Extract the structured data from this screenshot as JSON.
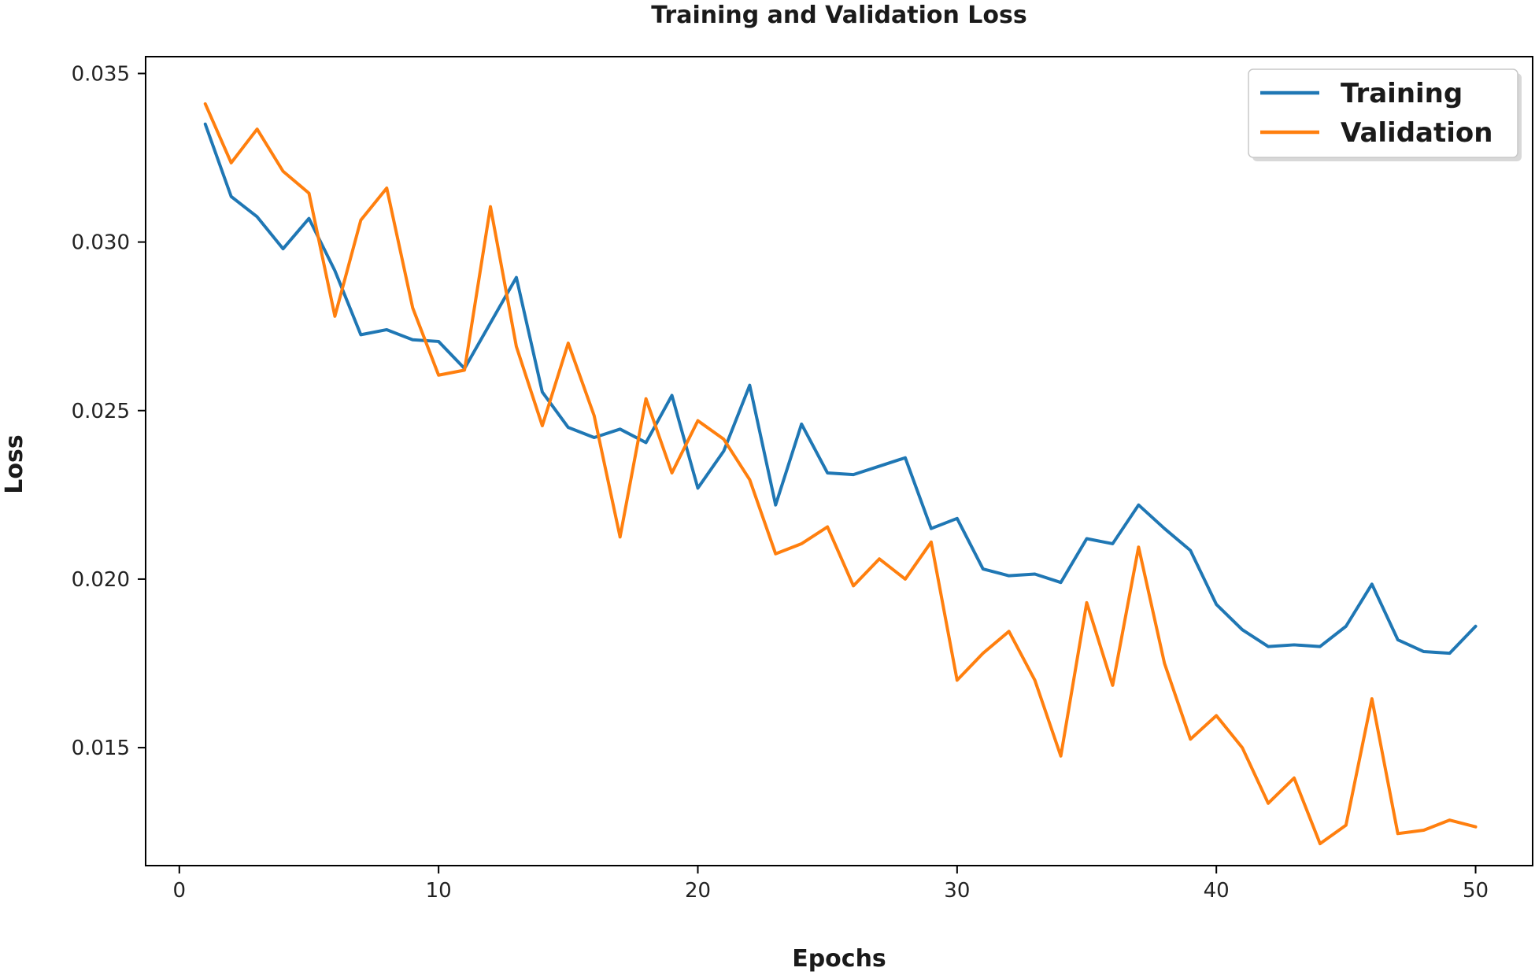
{
  "chart_data": {
    "type": "line",
    "title": "Training and Validation Loss",
    "xlabel": "Epochs",
    "ylabel": "Loss",
    "xlim": [
      -1.3,
      52.2
    ],
    "ylim": [
      0.0115,
      0.0355
    ],
    "xticks": [
      0,
      10,
      20,
      30,
      40,
      50
    ],
    "xtick_labels": [
      "0",
      "10",
      "20",
      "30",
      "40",
      "50"
    ],
    "yticks": [
      0.015,
      0.02,
      0.025,
      0.03,
      0.035
    ],
    "ytick_labels": [
      "0.015",
      "0.020",
      "0.025",
      "0.030",
      "0.035"
    ],
    "legend_position": "top-right",
    "x": [
      1,
      2,
      3,
      4,
      5,
      6,
      7,
      8,
      9,
      10,
      11,
      12,
      13,
      14,
      15,
      16,
      17,
      18,
      19,
      20,
      21,
      22,
      23,
      24,
      25,
      26,
      27,
      28,
      29,
      30,
      31,
      32,
      33,
      34,
      35,
      36,
      37,
      38,
      39,
      40,
      41,
      42,
      43,
      44,
      45,
      46,
      47,
      48,
      49,
      50
    ],
    "series": [
      {
        "name": "Training",
        "color": "#1f77b4",
        "values": [
          0.0335,
          0.03135,
          0.03075,
          0.0298,
          0.0307,
          0.02915,
          0.02725,
          0.0274,
          0.0271,
          0.02705,
          0.02625,
          0.0276,
          0.02895,
          0.02555,
          0.0245,
          0.0242,
          0.02445,
          0.02405,
          0.02545,
          0.0227,
          0.0238,
          0.02575,
          0.0222,
          0.0246,
          0.02315,
          0.0231,
          0.02335,
          0.0236,
          0.0215,
          0.0218,
          0.0203,
          0.0201,
          0.02015,
          0.0199,
          0.0212,
          0.02105,
          0.0222,
          0.0215,
          0.02085,
          0.01925,
          0.0185,
          0.018,
          0.01805,
          0.018,
          0.0186,
          0.01985,
          0.0182,
          0.01785,
          0.0178,
          0.0186
        ]
      },
      {
        "name": "Validation",
        "color": "#ff7f0e",
        "values": [
          0.0341,
          0.03235,
          0.03335,
          0.0321,
          0.03145,
          0.0278,
          0.03065,
          0.0316,
          0.02805,
          0.02605,
          0.0262,
          0.03105,
          0.0269,
          0.02455,
          0.027,
          0.02485,
          0.02125,
          0.02535,
          0.02315,
          0.0247,
          0.02415,
          0.02295,
          0.02075,
          0.02105,
          0.02155,
          0.0198,
          0.0206,
          0.02,
          0.0211,
          0.017,
          0.0178,
          0.01845,
          0.017,
          0.01475,
          0.0193,
          0.01685,
          0.02095,
          0.0175,
          0.01525,
          0.01595,
          0.015,
          0.01335,
          0.0141,
          0.01215,
          0.0127,
          0.01645,
          0.01245,
          0.01255,
          0.01285,
          0.01265
        ]
      }
    ]
  }
}
